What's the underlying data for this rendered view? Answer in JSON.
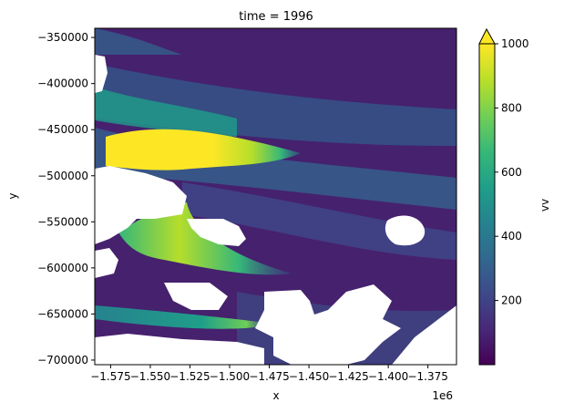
{
  "chart_data": {
    "type": "heatmap",
    "title": "time = 1996",
    "xlabel": "x",
    "ylabel": "y",
    "x_offset_label": "1e6",
    "xlim": [
      -1.585,
      -1.357
    ],
    "ylim": [
      -705000,
      -340000
    ],
    "x_ticks": [
      -1.575,
      -1.55,
      -1.525,
      -1.5,
      -1.475,
      -1.45,
      -1.425,
      -1.4,
      -1.375
    ],
    "x_tick_labels": [
      "−1.575",
      "−1.550",
      "−1.525",
      "−1.500",
      "−1.475",
      "−1.450",
      "−1.425",
      "−1.400",
      "−1.375"
    ],
    "y_ticks": [
      -350000,
      -400000,
      -450000,
      -500000,
      -550000,
      -600000,
      -650000,
      -700000
    ],
    "y_tick_labels": [
      "−350000",
      "−400000",
      "−450000",
      "−500000",
      "−550000",
      "−600000",
      "−650000",
      "−700000"
    ],
    "colorbar": {
      "label": "vv",
      "colormap": "viridis",
      "range": [
        0,
        1000
      ],
      "extend": "max",
      "ticks": [
        200,
        400,
        600,
        800,
        1000
      ],
      "tick_labels": [
        "200",
        "400",
        "600",
        "800",
        "1000"
      ]
    },
    "fast_flow_bands": [
      {
        "x_start": -1.585,
        "x_end": -1.46,
        "y": -480000,
        "peak": 1000
      },
      {
        "x_start": -1.57,
        "x_end": -1.49,
        "y": -580000,
        "peak": 850
      },
      {
        "x_start": -1.56,
        "x_end": -1.47,
        "y": -662000,
        "peak": 700
      }
    ]
  }
}
